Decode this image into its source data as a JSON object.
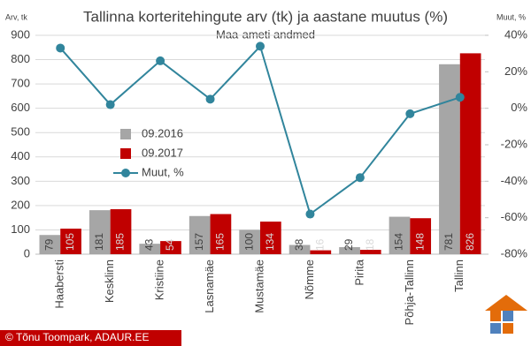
{
  "chart_data": {
    "type": "bar_line",
    "title": "Tallinna korteritehingute arv (tk) ja aastane muutus (%)",
    "subtitle": "Maa-ameti andmed",
    "y_label": "Arv, tk",
    "y2_label": "Muut, %",
    "footer": "© Tõnu Toompark, ADAUR.EE",
    "categories": [
      "Haabersti",
      "Kesklinn",
      "Kristiine",
      "Lasnamäe",
      "Mustamäe",
      "Nõmme",
      "Pirita",
      "Põhja-Tallinn",
      "Tallinn"
    ],
    "series": [
      {
        "name": "09.2016",
        "type": "bar",
        "color": "#a6a6a6",
        "values": [
          79,
          181,
          43,
          157,
          100,
          38,
          29,
          154,
          781
        ]
      },
      {
        "name": "09.2017",
        "type": "bar",
        "color": "#c00000",
        "values": [
          105,
          185,
          54,
          165,
          134,
          16,
          18,
          148,
          826
        ]
      },
      {
        "name": "Muut, %",
        "type": "line",
        "axis": "y2",
        "color": "#31859c",
        "values": [
          33,
          2,
          26,
          5,
          34,
          -58,
          -38,
          -3,
          6
        ]
      }
    ],
    "ylim": [
      0,
      900
    ],
    "yticks": [
      0,
      100,
      200,
      300,
      400,
      500,
      600,
      700,
      800,
      900
    ],
    "y2lim": [
      -80,
      40
    ],
    "y2ticks": [
      {
        "value": -80,
        "label": "-80%"
      },
      {
        "value": -60,
        "label": "-60%"
      },
      {
        "value": -40,
        "label": "-40%"
      },
      {
        "value": -20,
        "label": "-20%"
      },
      {
        "value": 0,
        "label": "0%"
      },
      {
        "value": 20,
        "label": "20%"
      },
      {
        "value": 40,
        "label": "40%"
      }
    ],
    "grid": true
  }
}
